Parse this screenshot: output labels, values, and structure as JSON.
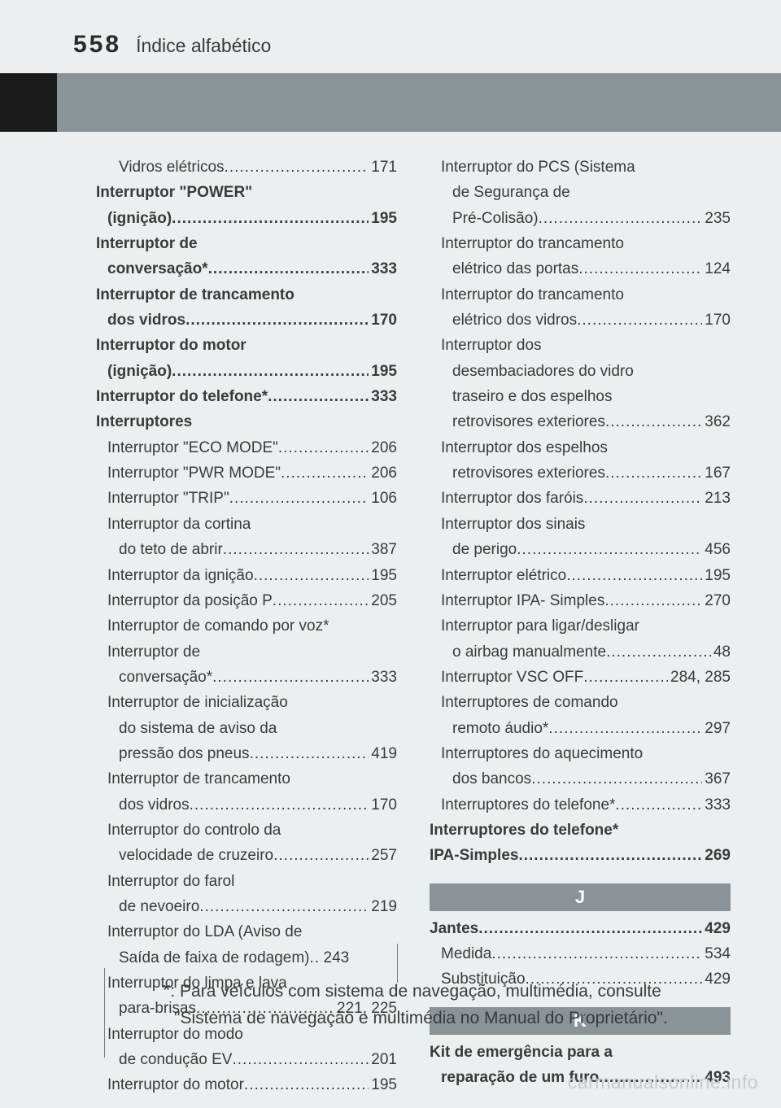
{
  "header": {
    "page_number": "558",
    "section": "Índice alfabético"
  },
  "col_left": [
    {
      "type": "entry",
      "indent": 2,
      "bold": false,
      "label": "Vidros elétricos",
      "page": "171"
    },
    {
      "type": "line",
      "indent": 0,
      "bold": true,
      "text": "Interruptor \"POWER\""
    },
    {
      "type": "entry",
      "indent": 1,
      "bold": true,
      "label": "(ignição) ",
      "page": "195"
    },
    {
      "type": "line",
      "indent": 0,
      "bold": true,
      "text": "Interruptor de"
    },
    {
      "type": "entry",
      "indent": 1,
      "bold": true,
      "label": "conversação* ",
      "page": "333"
    },
    {
      "type": "line",
      "indent": 0,
      "bold": true,
      "text": "Interruptor de trancamento"
    },
    {
      "type": "entry",
      "indent": 1,
      "bold": true,
      "label": "dos vidros ",
      "page": "170"
    },
    {
      "type": "line",
      "indent": 0,
      "bold": true,
      "text": "Interruptor do motor"
    },
    {
      "type": "entry",
      "indent": 1,
      "bold": true,
      "label": "(ignição)",
      "page": "195"
    },
    {
      "type": "entry",
      "indent": 0,
      "bold": true,
      "label": "Interruptor do telefone* ",
      "page": "333"
    },
    {
      "type": "line",
      "indent": 0,
      "bold": true,
      "text": "Interruptores"
    },
    {
      "type": "entry",
      "indent": 1,
      "bold": false,
      "label": "Interruptor \"ECO MODE\"",
      "page": "206"
    },
    {
      "type": "entry",
      "indent": 1,
      "bold": false,
      "label": "Interruptor \"PWR MODE\"",
      "page": "206"
    },
    {
      "type": "entry",
      "indent": 1,
      "bold": false,
      "label": "Interruptor \"TRIP\"",
      "page": "106"
    },
    {
      "type": "line",
      "indent": 1,
      "bold": false,
      "text": "Interruptor da cortina"
    },
    {
      "type": "entry",
      "indent": 2,
      "bold": false,
      "label": "do teto de abrir ",
      "page": "387"
    },
    {
      "type": "entry",
      "indent": 1,
      "bold": false,
      "label": "Interruptor da ignição ",
      "page": "195"
    },
    {
      "type": "entry",
      "indent": 1,
      "bold": false,
      "label": "Interruptor da posição P",
      "page": "205"
    },
    {
      "type": "line",
      "indent": 1,
      "bold": false,
      "text": "Interruptor de comando por voz*"
    },
    {
      "type": "line",
      "indent": 1,
      "bold": false,
      "text": "Interruptor de"
    },
    {
      "type": "entry",
      "indent": 2,
      "bold": false,
      "label": "conversação* ",
      "page": "333"
    },
    {
      "type": "line",
      "indent": 1,
      "bold": false,
      "text": "Interruptor de inicialização"
    },
    {
      "type": "line",
      "indent": 2,
      "bold": false,
      "text": "do sistema de aviso da"
    },
    {
      "type": "entry",
      "indent": 2,
      "bold": false,
      "label": "pressão dos pneus",
      "page": "419"
    },
    {
      "type": "line",
      "indent": 1,
      "bold": false,
      "text": "Interruptor de trancamento"
    },
    {
      "type": "entry",
      "indent": 2,
      "bold": false,
      "label": "dos vidros",
      "page": "170"
    },
    {
      "type": "line",
      "indent": 1,
      "bold": false,
      "text": "Interruptor do controlo da"
    },
    {
      "type": "entry",
      "indent": 2,
      "bold": false,
      "label": "velocidade de cruzeiro",
      "page": "257"
    },
    {
      "type": "line",
      "indent": 1,
      "bold": false,
      "text": "Interruptor do farol"
    },
    {
      "type": "entry",
      "indent": 2,
      "bold": false,
      "label": "de nevoeiro ",
      "page": "219"
    },
    {
      "type": "line",
      "indent": 1,
      "bold": false,
      "text": "Interruptor do LDA (Aviso de"
    },
    {
      "type": "entry",
      "indent": 2,
      "bold": false,
      "label": "Saída de faixa de rodagem)",
      "page": "243",
      "tight": true
    },
    {
      "type": "line",
      "indent": 1,
      "bold": false,
      "text": "Interruptor do limpa e lava"
    },
    {
      "type": "entry",
      "indent": 2,
      "bold": false,
      "label": "para-brisas",
      "page": "221, 225"
    },
    {
      "type": "line",
      "indent": 1,
      "bold": false,
      "text": "Interruptor do modo"
    },
    {
      "type": "entry",
      "indent": 2,
      "bold": false,
      "label": "de condução EV ",
      "page": "201"
    },
    {
      "type": "entry",
      "indent": 1,
      "bold": false,
      "label": "Interruptor do motor",
      "page": "195"
    }
  ],
  "col_right_top": [
    {
      "type": "line",
      "indent": 1,
      "bold": false,
      "text": "Interruptor do PCS (Sistema"
    },
    {
      "type": "line",
      "indent": 2,
      "bold": false,
      "text": "de Segurança de"
    },
    {
      "type": "entry",
      "indent": 2,
      "bold": false,
      "label": "Pré-Colisão) ",
      "page": "235"
    },
    {
      "type": "line",
      "indent": 1,
      "bold": false,
      "text": "Interruptor do trancamento"
    },
    {
      "type": "entry",
      "indent": 2,
      "bold": false,
      "label": "elétrico das portas",
      "page": "124"
    },
    {
      "type": "line",
      "indent": 1,
      "bold": false,
      "text": "Interruptor do trancamento"
    },
    {
      "type": "entry",
      "indent": 2,
      "bold": false,
      "label": "elétrico dos vidros ",
      "page": "170"
    },
    {
      "type": "line",
      "indent": 1,
      "bold": false,
      "text": "Interruptor dos"
    },
    {
      "type": "line",
      "indent": 2,
      "bold": false,
      "text": "desembaciadores do vidro"
    },
    {
      "type": "line",
      "indent": 2,
      "bold": false,
      "text": "traseiro e dos espelhos"
    },
    {
      "type": "entry",
      "indent": 2,
      "bold": false,
      "label": "retrovisores exteriores ",
      "page": "362"
    },
    {
      "type": "line",
      "indent": 1,
      "bold": false,
      "text": "Interruptor dos espelhos"
    },
    {
      "type": "entry",
      "indent": 2,
      "bold": false,
      "label": "retrovisores exteriores ",
      "page": "167"
    },
    {
      "type": "entry",
      "indent": 1,
      "bold": false,
      "label": "Interruptor dos faróis ",
      "page": "213"
    },
    {
      "type": "line",
      "indent": 1,
      "bold": false,
      "text": "Interruptor dos sinais"
    },
    {
      "type": "entry",
      "indent": 2,
      "bold": false,
      "label": "de perigo ",
      "page": "456"
    },
    {
      "type": "entry",
      "indent": 1,
      "bold": false,
      "label": "Interruptor elétrico ",
      "page": "195"
    },
    {
      "type": "entry",
      "indent": 1,
      "bold": false,
      "label": "Interruptor IPA- Simples",
      "page": "270"
    },
    {
      "type": "line",
      "indent": 1,
      "bold": false,
      "text": "Interruptor para ligar/desligar"
    },
    {
      "type": "entry",
      "indent": 2,
      "bold": false,
      "label": "o airbag manualmente",
      "page": "48"
    },
    {
      "type": "entry",
      "indent": 1,
      "bold": false,
      "label": "Interruptor VSC OFF ",
      "page": "284, 285"
    },
    {
      "type": "line",
      "indent": 1,
      "bold": false,
      "text": "Interruptores de comando"
    },
    {
      "type": "entry",
      "indent": 2,
      "bold": false,
      "label": "remoto áudio* ",
      "page": "297"
    },
    {
      "type": "line",
      "indent": 1,
      "bold": false,
      "text": "Interruptores do aquecimento"
    },
    {
      "type": "entry",
      "indent": 2,
      "bold": false,
      "label": "dos bancos ",
      "page": "367"
    },
    {
      "type": "entry",
      "indent": 1,
      "bold": false,
      "label": "Interruptores do telefone*",
      "page": "333"
    },
    {
      "type": "line",
      "indent": 0,
      "bold": true,
      "text": "Interruptores do telefone*"
    },
    {
      "type": "entry",
      "indent": 0,
      "bold": true,
      "label": "IPA-Simples",
      "page": "269"
    }
  ],
  "section_J": {
    "letter": "J",
    "items": [
      {
        "type": "entry",
        "indent": 0,
        "bold": true,
        "label": "Jantes ",
        "page": "429"
      },
      {
        "type": "entry",
        "indent": 1,
        "bold": false,
        "label": "Medida ",
        "page": "534"
      },
      {
        "type": "entry",
        "indent": 1,
        "bold": false,
        "label": "Substituição ",
        "page": "429"
      }
    ]
  },
  "section_K": {
    "letter": "K",
    "items": [
      {
        "type": "line",
        "indent": 0,
        "bold": true,
        "text": "Kit de emergência para a"
      },
      {
        "type": "entry",
        "indent": 1,
        "bold": true,
        "label": "reparação de um furo",
        "page": "493"
      }
    ]
  },
  "footnote": {
    "marker": "*",
    "text": ": Para veículos com sistema de navegação, multimédia, consulte \"Sistema de navegação e multimédia no Manual do Proprietário\"."
  },
  "watermark": "carmanualsonline.info",
  "colors": {
    "page_bg": "#eceff0",
    "band_grey": "#8a9398",
    "tab_black": "#1a1a1a",
    "text": "#3a3a3a",
    "watermark": "#c7cbce"
  }
}
